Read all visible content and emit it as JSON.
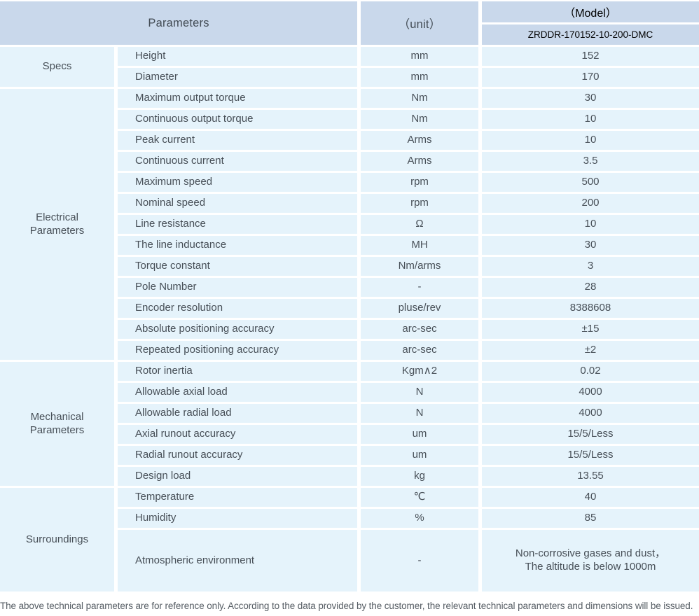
{
  "colors": {
    "header_bg": "#c9d8eb",
    "row_bg": "#e5f3fb",
    "text": "#474f57"
  },
  "header": {
    "parameters_label": "Parameters",
    "unit_label": "（unit）",
    "model_label": "（Model）",
    "model_value": "ZRDDR-170152-10-200-DMC"
  },
  "sections": [
    {
      "category": "Specs",
      "rows": [
        {
          "name": "Height",
          "unit": "mm",
          "value": "152"
        },
        {
          "name": "Diameter",
          "unit": "mm",
          "value": "170"
        }
      ]
    },
    {
      "category": "Electrical\nParameters",
      "rows": [
        {
          "name": "Maximum output torque",
          "unit": "Nm",
          "value": "30"
        },
        {
          "name": "Continuous output torque",
          "unit": "Nm",
          "value": "10"
        },
        {
          "name": "Peak current",
          "unit": "Arms",
          "value": "10"
        },
        {
          "name": "Continuous current",
          "unit": "Arms",
          "value": "3.5"
        },
        {
          "name": "Maximum speed",
          "unit": "rpm",
          "value": "500"
        },
        {
          "name": "Nominal speed",
          "unit": "rpm",
          "value": "200"
        },
        {
          "name": "Line resistance",
          "unit": "Ω",
          "value": "10"
        },
        {
          "name": "The line inductance",
          "unit": "MH",
          "value": "30"
        },
        {
          "name": "Torque constant",
          "unit": "Nm/arms",
          "value": "3"
        },
        {
          "name": "Pole Number",
          "unit": "-",
          "value": "28"
        },
        {
          "name": "Encoder resolution",
          "unit": "pluse/rev",
          "value": "8388608"
        },
        {
          "name": "Absolute positioning accuracy",
          "unit": "arc-sec",
          "value": "±15"
        },
        {
          "name": "Repeated positioning accuracy",
          "unit": "arc-sec",
          "value": "±2"
        }
      ]
    },
    {
      "category": "Mechanical\nParameters",
      "rows": [
        {
          "name": "Rotor inertia",
          "unit": "Kgm∧2",
          "value": "0.02"
        },
        {
          "name": "Allowable axial load",
          "unit": "N",
          "value": "4000"
        },
        {
          "name": "Allowable radial load",
          "unit": "N",
          "value": "4000"
        },
        {
          "name": "Axial runout accuracy",
          "unit": "um",
          "value": "15/5/Less"
        },
        {
          "name": "Radial runout accuracy",
          "unit": "um",
          "value": "15/5/Less"
        },
        {
          "name": "Design load",
          "unit": "kg",
          "value": "13.55"
        }
      ]
    },
    {
      "category": "Surroundings",
      "rows": [
        {
          "name": "Temperature",
          "unit": "℃",
          "value": "40"
        },
        {
          "name": "Humidity",
          "unit": "%",
          "value": "85"
        },
        {
          "name": "Atmospheric environment",
          "unit": "-",
          "value": "Non-corrosive gases and dust，\nThe altitude is below 1000m"
        }
      ]
    }
  ],
  "footer": {
    "note": "The above technical parameters are for reference only. According to the data provided by the customer, the relevant technical parameters and dimensions will be issued."
  }
}
